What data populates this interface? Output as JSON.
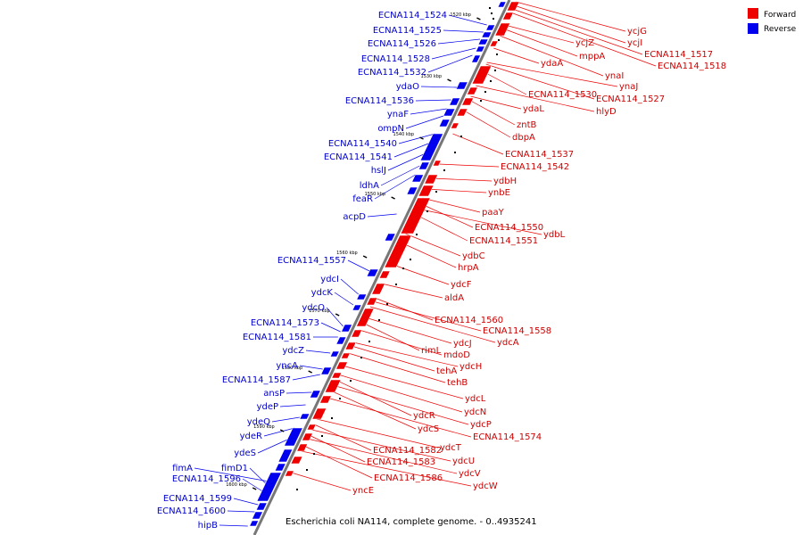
{
  "caption": "Escherichia coli NA114, complete genome. - 0..4935241",
  "legend": [
    {
      "name": "Forward",
      "color": "#ee0000"
    },
    {
      "name": "Reverse",
      "color": "#0000ee"
    }
  ],
  "colors": {
    "forward": "#ee0000",
    "reverse": "#0000ee",
    "forward_label": "#cc0000",
    "reverse_label": "#0000cc",
    "backbone": "#777777"
  },
  "ticks": [
    "1520 kbp",
    "1530 kbp",
    "1540 kbp",
    "1550 kbp",
    "1560 kbp",
    "1570 kbp",
    "1580 kbp",
    "1590 kbp",
    "1600 kbp"
  ],
  "reverse_genes": [
    "ECNA114_1524",
    "ECNA114_1525",
    "ECNA114_1526",
    "ECNA114_1528",
    "ECNA114_1532",
    "ydaO",
    "ECNA114_1536",
    "ynaF",
    "ompN",
    "ECNA114_1540",
    "ECNA114_1541",
    "hslJ",
    "ldhA",
    "feaR",
    "acpD",
    "ECNA114_1557",
    "ydcI",
    "ydcK",
    "ydcO",
    "ECNA114_1573",
    "ECNA114_1581",
    "ydcZ",
    "yncA",
    "ECNA114_1587",
    "ansP",
    "ydeP",
    "ydeQ",
    "ydeR",
    "ydeS",
    "fimA",
    "fimD1",
    "ECNA114_1596",
    "ECNA114_1599",
    "ECNA114_1600",
    "hipB"
  ],
  "forward_genes": [
    "ycjG",
    "ycjI",
    "ycjZ",
    "mppA",
    "ECNA114_1517",
    "ECNA114_1518",
    "ydaA",
    "ynaI",
    "ynaJ",
    "ECNA114_1530",
    "ECNA114_1527",
    "ydaL",
    "hlyD",
    "zntB",
    "dbpA",
    "ECNA114_1537",
    "ECNA114_1542",
    "ydbH",
    "ynbE",
    "paaY",
    "ECNA114_1550",
    "ydbL",
    "ECNA114_1551",
    "ydbC",
    "hrpA",
    "ydcF",
    "aldA",
    "ECNA114_1560",
    "ECNA114_1558",
    "ydcA",
    "ydcJ",
    "rimL",
    "mdoD",
    "ydcH",
    "tehA",
    "tehB",
    "ydcL",
    "ydcN",
    "ydcR",
    "ydcP",
    "ydcS",
    "ECNA114_1574",
    "ydcT",
    "ECNA114_1582",
    "ydcU",
    "ECNA114_1583",
    "ydcV",
    "ECNA114_1586",
    "ydcW",
    "yncE"
  ]
}
